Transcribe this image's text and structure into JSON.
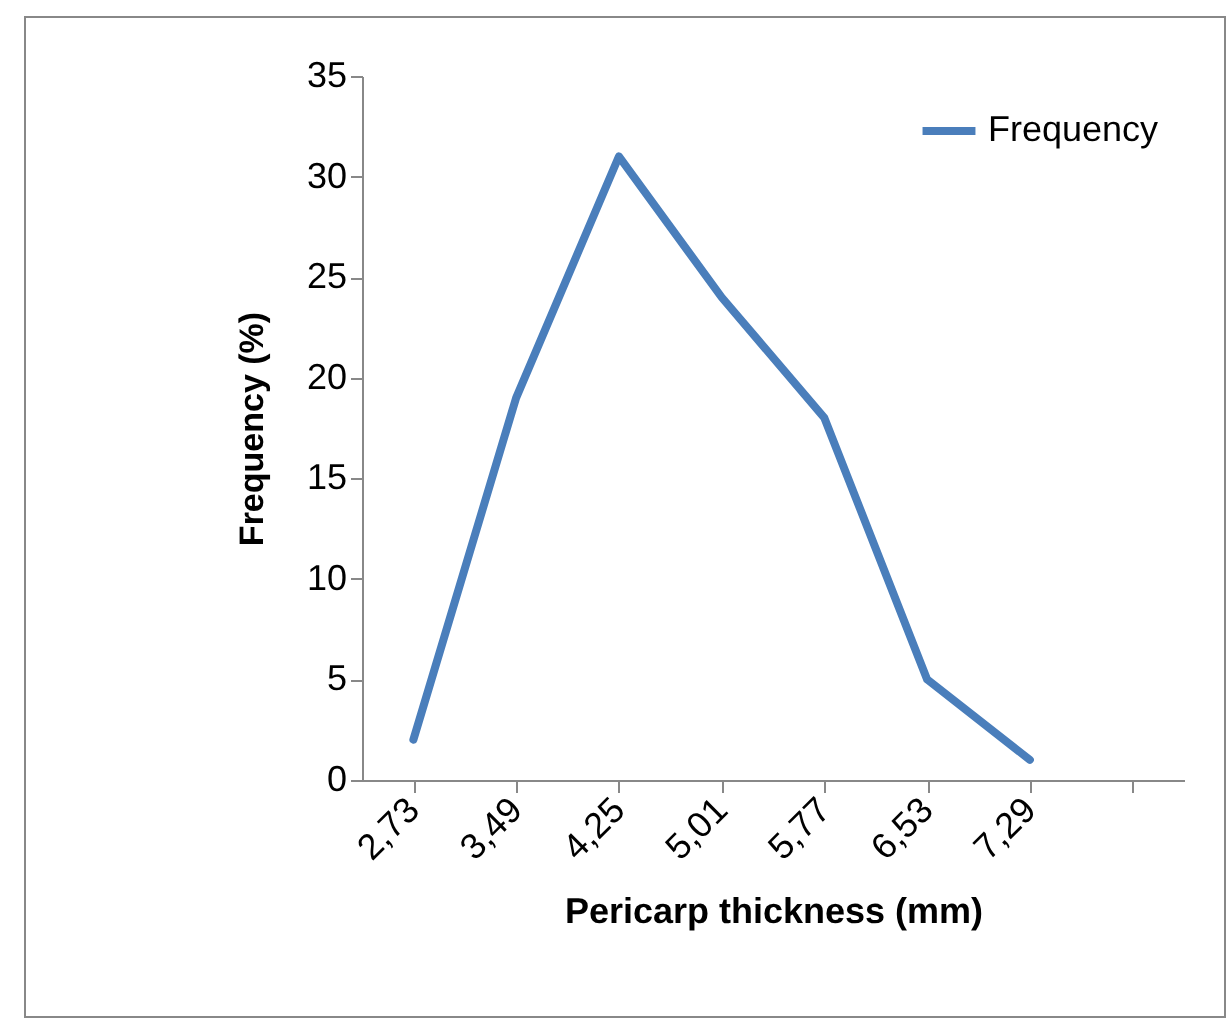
{
  "chart_data": {
    "type": "line",
    "xlabel": "Pericarp  thickness (mm)",
    "ylabel": "Frequency (%)",
    "categories": [
      "2,73",
      "3,49",
      "4,25",
      "5,01",
      "5,77",
      "6,53",
      "7,29",
      null
    ],
    "series": [
      {
        "name": "Frequency",
        "color": "#4a7ebb",
        "values": [
          2,
          19,
          31,
          24,
          18,
          5,
          1,
          null
        ]
      }
    ],
    "ylim": [
      0,
      35
    ],
    "yticks": [
      0,
      5,
      10,
      15,
      20,
      25,
      30,
      35
    ],
    "grid": false,
    "legend": "top right",
    "marker": "none",
    "line_style": "solid"
  }
}
